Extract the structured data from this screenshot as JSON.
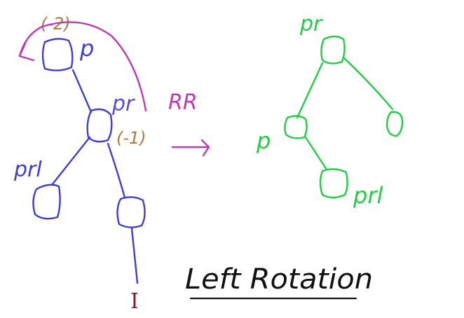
{
  "colors": {
    "before_tree": "#3d3fd0",
    "before_labels": "#5a4bd6",
    "balance_factor": "#b07a45",
    "rotation_arrow": "#c03ab8",
    "after_tree": "#22cc44",
    "inserted_mark": "#8a1a2a",
    "title_ink": "#111111"
  },
  "before": {
    "p_balance": "(-2)",
    "p_label": "p",
    "pr_label": "pr",
    "pr_balance": "(-1)",
    "prl_label": "prl",
    "inserted_label": "I"
  },
  "rotation_label": "RR",
  "after": {
    "pr_label": "pr",
    "p_label": "p",
    "prl_label": "prl"
  },
  "title": "Left Rotation"
}
